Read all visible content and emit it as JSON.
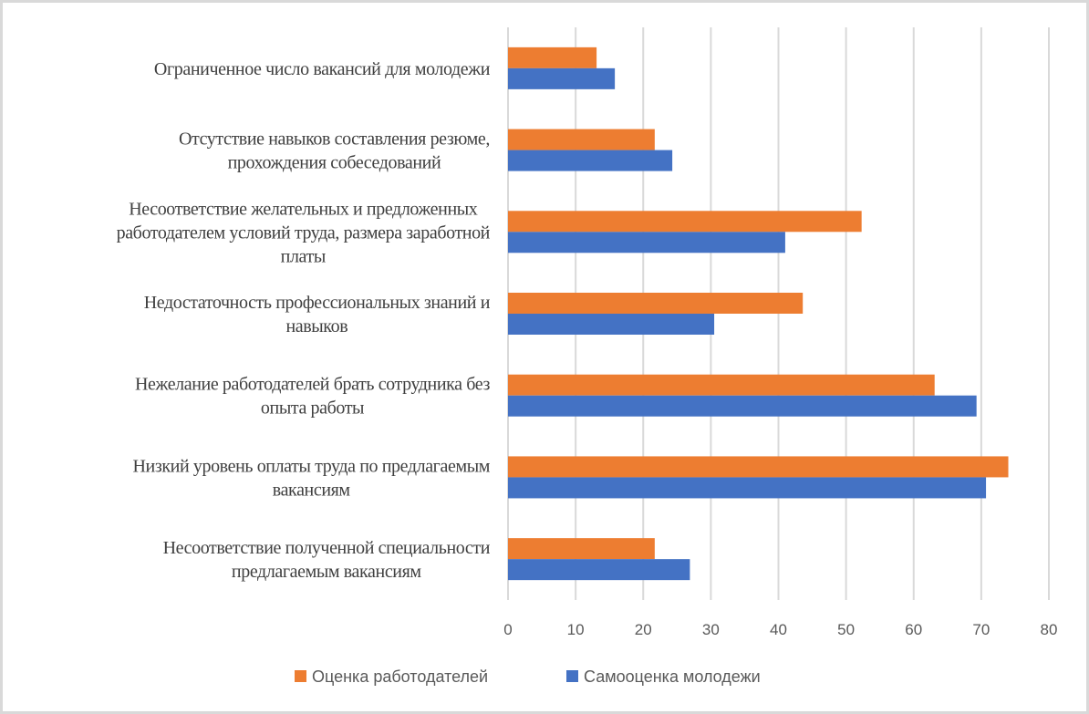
{
  "chart_data": {
    "type": "bar",
    "orientation": "horizontal",
    "title": "",
    "xlabel": "",
    "ylabel": "",
    "xlim": [
      0,
      80
    ],
    "x_ticks": [
      "0",
      "10",
      "20",
      "30",
      "40",
      "50",
      "60",
      "70",
      "80"
    ],
    "grid": true,
    "legend_position": "bottom",
    "categories": [
      [
        "Ограниченное число вакансий для молодежи"
      ],
      [
        "Отсутствие навыков составления резюме,",
        "прохождения собеседований"
      ],
      [
        "Несоответствие желательных и предложенных",
        "работодателем условий труда, размера заработной",
        "платы"
      ],
      [
        "Недостаточность профессиональных знаний и",
        "навыков"
      ],
      [
        "Нежелание  работодателей брать сотрудника без",
        "опыта работы"
      ],
      [
        "Низкий уровень оплаты труда по предлагаемым",
        "вакансиям"
      ],
      [
        "Несоответствие полученной специальности",
        "предлагаемым вакансиям"
      ]
    ],
    "series": [
      {
        "name": "Оценка работодателей",
        "color": "#ED7D31",
        "values": [
          13.1,
          21.7,
          52.3,
          43.6,
          63.1,
          74.0,
          21.7
        ]
      },
      {
        "name": "Самооценка молодежи",
        "color": "#4472C4",
        "values": [
          15.8,
          24.3,
          41.0,
          30.5,
          69.3,
          70.7,
          26.9
        ]
      }
    ]
  }
}
